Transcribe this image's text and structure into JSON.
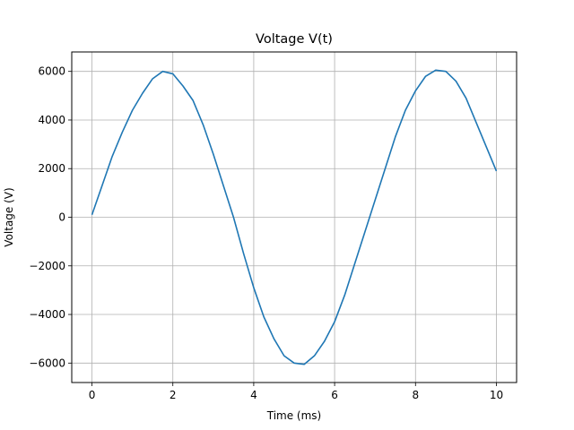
{
  "chart_data": {
    "type": "line",
    "title": "Voltage V(t)",
    "xlabel": "Time (ms)",
    "ylabel": "Voltage (V)",
    "xlim": [
      -0.5,
      10.5
    ],
    "ylim": [
      -6800,
      6800
    ],
    "xticks": [
      0,
      2,
      4,
      6,
      8,
      10
    ],
    "xtick_labels": [
      "0",
      "2",
      "4",
      "6",
      "8",
      "10"
    ],
    "yticks": [
      -6000,
      -4000,
      -2000,
      0,
      2000,
      4000,
      6000
    ],
    "ytick_labels": [
      "−6000",
      "−4000",
      "−2000",
      "0",
      "2000",
      "4000",
      "6000"
    ],
    "grid": true,
    "legend": "none",
    "series": [
      {
        "color": "#1f77b4",
        "x": [
          0,
          0.25,
          0.5,
          0.75,
          1.0,
          1.25,
          1.5,
          1.75,
          2.0,
          2.25,
          2.5,
          2.75,
          3.0,
          3.25,
          3.5,
          3.75,
          4.0,
          4.25,
          4.5,
          4.75,
          5.0,
          5.25,
          5.5,
          5.75,
          6.0,
          6.25,
          6.5,
          6.75,
          7.0,
          7.25,
          7.5,
          7.75,
          8.0,
          8.25,
          8.5,
          8.75,
          9.0,
          9.25,
          9.5,
          9.75,
          10.0
        ],
        "y": [
          100,
          1300,
          2500,
          3500,
          4400,
          5100,
          5700,
          6000,
          5900,
          5400,
          4800,
          3800,
          2600,
          1300,
          0,
          -1500,
          -2900,
          -4100,
          -5000,
          -5700,
          -6000,
          -6050,
          -5700,
          -5100,
          -4300,
          -3200,
          -1900,
          -600,
          700,
          2000,
          3300,
          4400,
          5200,
          5800,
          6050,
          6000,
          5600,
          4900,
          3900,
          2900,
          1900
        ]
      }
    ]
  }
}
